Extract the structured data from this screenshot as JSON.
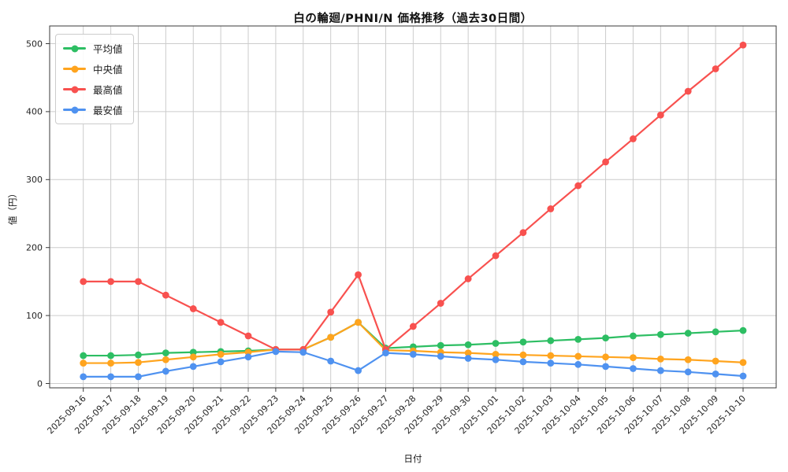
{
  "chart_data": {
    "type": "line",
    "title": "白の輪廻/PHNI/N 価格推移（過去30日間）",
    "xlabel": "日付",
    "ylabel": "値（円）",
    "ylim": [
      0,
      500
    ],
    "yticks": [
      0,
      100,
      200,
      300,
      400,
      500
    ],
    "grid": true,
    "legend_position": "upper-left",
    "x": [
      "2025-09-16",
      "2025-09-17",
      "2025-09-18",
      "2025-09-19",
      "2025-09-20",
      "2025-09-21",
      "2025-09-22",
      "2025-09-23",
      "2025-09-24",
      "2025-09-25",
      "2025-09-26",
      "2025-09-27",
      "2025-09-28",
      "2025-09-29",
      "2025-09-30",
      "2025-10-01",
      "2025-10-02",
      "2025-10-03",
      "2025-10-04",
      "2025-10-05",
      "2025-10-06",
      "2025-10-07",
      "2025-10-08",
      "2025-10-09",
      "2025-10-10"
    ],
    "series": [
      {
        "name": "平均値",
        "color": "#2dbe63",
        "values": [
          41,
          41,
          42,
          45,
          46,
          47,
          48,
          50,
          50,
          68,
          90,
          52,
          54,
          56,
          57,
          59,
          61,
          63,
          65,
          67,
          70,
          72,
          74,
          76,
          78
        ]
      },
      {
        "name": "中央値",
        "color": "#ffa41e",
        "values": [
          30,
          30,
          31,
          35,
          39,
          43,
          46,
          50,
          50,
          68,
          90,
          49,
          48,
          46,
          45,
          43,
          42,
          41,
          40,
          39,
          38,
          36,
          35,
          33,
          31
        ]
      },
      {
        "name": "最高値",
        "color": "#f8514f",
        "values": [
          150,
          150,
          150,
          130,
          110,
          90,
          70,
          50,
          50,
          105,
          160,
          50,
          84,
          118,
          154,
          188,
          222,
          257,
          291,
          326,
          360,
          395,
          430,
          463,
          498
        ]
      },
      {
        "name": "最安値",
        "color": "#4f92f0",
        "values": [
          10,
          10,
          10,
          18,
          25,
          32,
          39,
          47,
          46,
          33,
          19,
          45,
          43,
          40,
          37,
          35,
          32,
          30,
          28,
          25,
          22,
          19,
          17,
          14,
          11
        ]
      }
    ]
  },
  "colors": {
    "grid": "#cccccc",
    "spine": "#3a3a3a",
    "tick_label": "#262626"
  }
}
